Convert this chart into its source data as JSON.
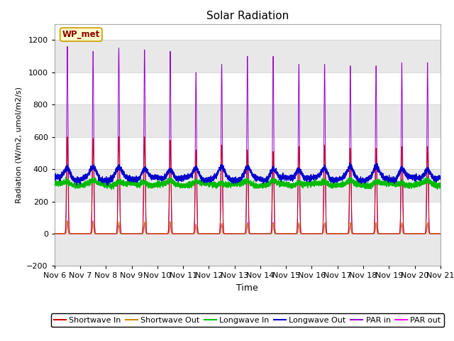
{
  "title": "Solar Radiation",
  "ylabel": "Radiation (W/m2, umol/m2/s)",
  "xlabel": "Time",
  "ylim": [
    -200,
    1300
  ],
  "yticks": [
    -200,
    0,
    200,
    400,
    600,
    800,
    1000,
    1200
  ],
  "xlim": [
    0,
    15
  ],
  "x_tick_labels": [
    "Nov 6",
    "Nov 7",
    "Nov 8",
    "Nov 9",
    "Nov 10",
    "Nov 11",
    "Nov 12",
    "Nov 13",
    "Nov 14",
    "Nov 15",
    "Nov 16",
    "Nov 17",
    "Nov 18",
    "Nov 19",
    "Nov 20",
    "Nov 21"
  ],
  "station_label": "WP_met",
  "colors": {
    "shortwave_in": "#cc0000",
    "shortwave_out": "#cc8800",
    "longwave_in": "#00bb00",
    "longwave_out": "#0000cc",
    "par_in": "#9900cc",
    "par_out": "#ff00ff"
  },
  "legend_entries": [
    {
      "label": "Shortwave In",
      "color": "#cc0000"
    },
    {
      "label": "Shortwave Out",
      "color": "#cc8800"
    },
    {
      "label": "Longwave In",
      "color": "#00bb00"
    },
    {
      "label": "Longwave Out",
      "color": "#0000cc"
    },
    {
      "label": "PAR in",
      "color": "#9900cc"
    },
    {
      "label": "PAR out",
      "color": "#ff00ff"
    }
  ],
  "par_peaks": [
    0.5,
    1.5,
    2.5,
    3.5,
    4.5,
    5.5,
    6.5,
    7.5,
    8.5,
    9.5,
    10.5,
    11.5,
    12.5,
    13.5,
    14.5
  ],
  "par_in_heights": [
    1160,
    1130,
    1150,
    1140,
    1130,
    1000,
    1050,
    1100,
    1100,
    1050,
    1050,
    1040,
    1040,
    1060,
    1060
  ],
  "sw_in_heights": [
    600,
    590,
    600,
    600,
    580,
    520,
    550,
    520,
    510,
    540,
    550,
    530,
    530,
    540,
    540
  ],
  "sw_out_heights": [
    80,
    75,
    75,
    75,
    75,
    55,
    65,
    65,
    65,
    70,
    70,
    70,
    70,
    70,
    70
  ],
  "par_out_heights": [
    80,
    80,
    55,
    65,
    65,
    60,
    65,
    70,
    70,
    65,
    65,
    65,
    65,
    70,
    70
  ],
  "lw_in_baseline": 305,
  "lw_out_baseline": 340
}
